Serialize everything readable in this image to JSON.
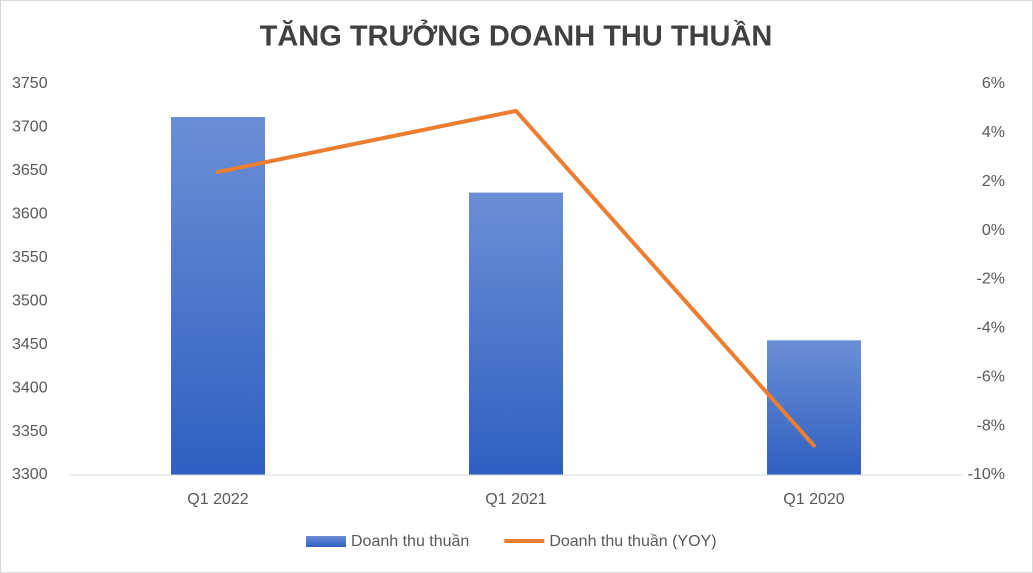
{
  "chart_data": {
    "type": "bar-line",
    "title": "TĂNG TRƯỞNG DOANH THU THUẦN",
    "categories": [
      "Q1 2022",
      "Q1 2021",
      "Q1 2020"
    ],
    "series": [
      {
        "name": "Doanh thu thuần",
        "type": "bar",
        "color": "#4472c4",
        "values": [
          3712,
          3625,
          3455
        ]
      },
      {
        "name": "Doanh thu thuần (YOY)",
        "type": "line",
        "axis": "y2",
        "color": "#ed7d31",
        "values": [
          2.4,
          4.9,
          -8.8
        ]
      }
    ],
    "ylim": [
      3300,
      3750
    ],
    "yticks": [
      3300,
      3350,
      3400,
      3450,
      3500,
      3550,
      3600,
      3650,
      3700,
      3750
    ],
    "y2lim": [
      -10,
      6
    ],
    "y2ticks": [
      {
        "value": -10,
        "label": "-10%"
      },
      {
        "value": -8,
        "label": "-8%"
      },
      {
        "value": -6,
        "label": "-6%"
      },
      {
        "value": -4,
        "label": "-4%"
      },
      {
        "value": -2,
        "label": "-2%"
      },
      {
        "value": 0,
        "label": "0%"
      },
      {
        "value": 2,
        "label": "2%"
      },
      {
        "value": 4,
        "label": "4%"
      },
      {
        "value": 6,
        "label": "6%"
      }
    ],
    "grid": false,
    "legend": "bottom"
  }
}
